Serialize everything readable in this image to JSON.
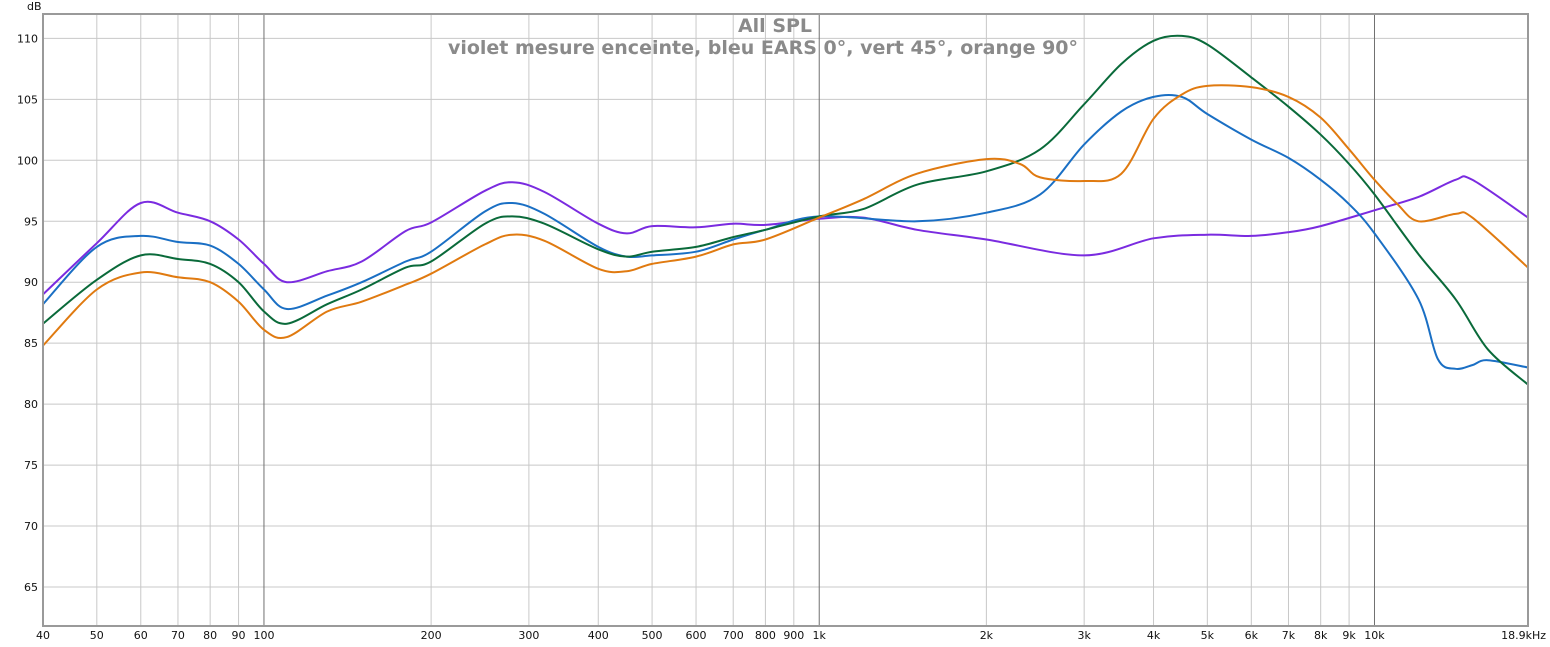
{
  "chart_data": {
    "type": "line",
    "title": "All SPL",
    "subtitle": "violet mesure enceinte, bleu EARS 0°, vert 45°, orange 90°",
    "ylabel": "dB",
    "xlabel": "",
    "x_scale": "log",
    "xlim": [
      40,
      18900
    ],
    "ylim": [
      61.8,
      112
    ],
    "grid": true,
    "y_ticks": [
      65,
      70,
      75,
      80,
      85,
      90,
      95,
      100,
      105,
      110
    ],
    "x_ticks": [
      {
        "v": 40,
        "label": "40"
      },
      {
        "v": 50,
        "label": "50"
      },
      {
        "v": 60,
        "label": "60"
      },
      {
        "v": 70,
        "label": "70"
      },
      {
        "v": 80,
        "label": "80"
      },
      {
        "v": 90,
        "label": "90"
      },
      {
        "v": 100,
        "label": "100"
      },
      {
        "v": 200,
        "label": "200"
      },
      {
        "v": 300,
        "label": "300"
      },
      {
        "v": 400,
        "label": "400"
      },
      {
        "v": 500,
        "label": "500"
      },
      {
        "v": 600,
        "label": "600"
      },
      {
        "v": 700,
        "label": "700"
      },
      {
        "v": 800,
        "label": "800"
      },
      {
        "v": 900,
        "label": "900"
      },
      {
        "v": 1000,
        "label": "1k"
      },
      {
        "v": 2000,
        "label": "2k"
      },
      {
        "v": 3000,
        "label": "3k"
      },
      {
        "v": 4000,
        "label": "4k"
      },
      {
        "v": 5000,
        "label": "5k"
      },
      {
        "v": 6000,
        "label": "6k"
      },
      {
        "v": 7000,
        "label": "7k"
      },
      {
        "v": 8000,
        "label": "8k"
      },
      {
        "v": 9000,
        "label": "9k"
      },
      {
        "v": 10000,
        "label": "10k"
      },
      {
        "v": 18900,
        "label": "18.9kHz"
      }
    ],
    "series": [
      {
        "name": "violet mesure enceinte",
        "color": "#7a2be0",
        "x": [
          40,
          50,
          60,
          70,
          80,
          90,
          100,
          110,
          130,
          150,
          180,
          200,
          250,
          280,
          320,
          400,
          450,
          500,
          600,
          700,
          800,
          1000,
          1200,
          1500,
          2000,
          3000,
          4000,
          5000,
          6000,
          7000,
          8000,
          10000,
          12000,
          14000,
          15000,
          18900
        ],
        "y": [
          89.0,
          93.2,
          96.5,
          95.7,
          95.0,
          93.5,
          91.5,
          90.0,
          90.9,
          91.7,
          94.2,
          94.9,
          97.5,
          98.2,
          97.4,
          94.8,
          94.0,
          94.6,
          94.5,
          94.8,
          94.7,
          95.2,
          95.3,
          94.3,
          93.5,
          92.2,
          93.6,
          93.9,
          93.8,
          94.1,
          94.6,
          95.9,
          97.0,
          98.4,
          98.4,
          95.3
        ]
      },
      {
        "name": "bleu EARS 0°",
        "color": "#1a6fc4",
        "x": [
          40,
          50,
          60,
          70,
          80,
          90,
          100,
          110,
          130,
          150,
          180,
          200,
          250,
          280,
          320,
          400,
          450,
          500,
          600,
          700,
          800,
          1000,
          1500,
          2000,
          2500,
          3000,
          3500,
          4000,
          4500,
          5000,
          6000,
          7000,
          8000,
          9000,
          10000,
          12000,
          13000,
          14000,
          15000,
          16000,
          18900
        ],
        "y": [
          88.2,
          92.9,
          93.8,
          93.3,
          93.0,
          91.5,
          89.4,
          87.8,
          88.9,
          90.0,
          91.7,
          92.5,
          95.8,
          96.5,
          95.6,
          92.9,
          92.1,
          92.2,
          92.5,
          93.5,
          94.3,
          95.4,
          95.0,
          95.7,
          97.2,
          101.3,
          104.0,
          105.2,
          105.2,
          103.8,
          101.7,
          100.2,
          98.4,
          96.4,
          94.0,
          88.6,
          83.7,
          82.9,
          83.2,
          83.6,
          83.0
        ]
      },
      {
        "name": "vert 45°",
        "color": "#0a6a3a",
        "x": [
          40,
          50,
          60,
          70,
          80,
          90,
          100,
          110,
          130,
          150,
          180,
          200,
          250,
          280,
          320,
          400,
          450,
          500,
          600,
          700,
          800,
          1000,
          1200,
          1500,
          2000,
          2500,
          3000,
          3500,
          4000,
          4500,
          5000,
          6000,
          7000,
          8000,
          9000,
          10000,
          12000,
          14000,
          16000,
          18900
        ],
        "y": [
          86.6,
          90.2,
          92.2,
          91.9,
          91.5,
          90.0,
          87.6,
          86.6,
          88.2,
          89.4,
          91.2,
          91.7,
          94.8,
          95.4,
          94.8,
          92.7,
          92.1,
          92.5,
          92.9,
          93.7,
          94.3,
          95.4,
          96.0,
          98.0,
          99.1,
          100.9,
          104.6,
          107.9,
          109.8,
          110.2,
          109.5,
          106.8,
          104.4,
          102.1,
          99.7,
          97.2,
          92.3,
          88.6,
          84.5,
          81.6
        ]
      },
      {
        "name": "orange 90°",
        "color": "#e07a10",
        "x": [
          40,
          50,
          60,
          70,
          80,
          90,
          100,
          110,
          130,
          150,
          180,
          200,
          250,
          280,
          320,
          400,
          450,
          500,
          600,
          700,
          800,
          1000,
          1200,
          1500,
          2000,
          2300,
          2500,
          3000,
          3500,
          4000,
          4500,
          5000,
          6000,
          7000,
          8000,
          9000,
          10000,
          11000,
          12000,
          14000,
          15000,
          18900
        ],
        "y": [
          84.8,
          89.4,
          90.8,
          90.4,
          90.0,
          88.4,
          86.1,
          85.5,
          87.6,
          88.4,
          89.8,
          90.7,
          93.1,
          93.9,
          93.4,
          91.1,
          90.9,
          91.5,
          92.1,
          93.1,
          93.5,
          95.3,
          96.8,
          98.9,
          100.1,
          99.7,
          98.6,
          98.3,
          98.9,
          103.4,
          105.4,
          106.1,
          106.0,
          105.2,
          103.5,
          100.9,
          98.4,
          96.4,
          95.0,
          95.6,
          95.3,
          91.2
        ]
      }
    ]
  }
}
